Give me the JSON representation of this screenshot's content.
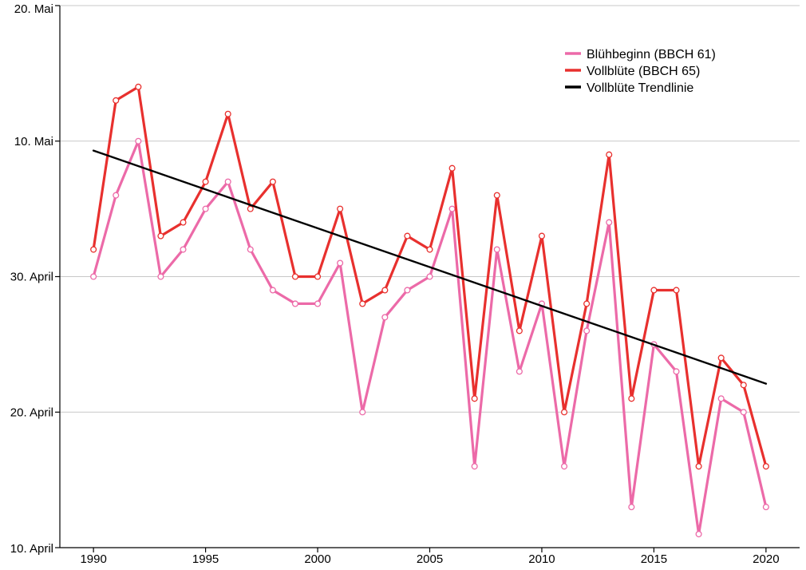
{
  "chart_data": {
    "type": "line",
    "title": "",
    "xlabel": "",
    "ylabel": "",
    "xlim": [
      1988.5,
      2021.5
    ],
    "ylim": [
      10,
      50
    ],
    "x_ticks": [
      1990,
      1995,
      2000,
      2005,
      2010,
      2015,
      2020
    ],
    "y_ticks": [
      {
        "value": 10,
        "label": "10. April"
      },
      {
        "value": 20,
        "label": "20. April"
      },
      {
        "value": 30,
        "label": "30. April"
      },
      {
        "value": 40,
        "label": "10. Mai"
      },
      {
        "value": 50,
        "label": "20. Mai"
      }
    ],
    "grid": "horizontal",
    "legend_position": "top-right",
    "x": [
      1990,
      1991,
      1992,
      1993,
      1994,
      1995,
      1996,
      1997,
      1998,
      1999,
      2000,
      2001,
      2002,
      2003,
      2004,
      2005,
      2006,
      2007,
      2008,
      2009,
      2010,
      2011,
      2012,
      2013,
      2014,
      2015,
      2016,
      2017,
      2018,
      2019,
      2020
    ],
    "series": [
      {
        "name": "Blühbeginn (BBCH 61)",
        "color": "#ec6aa8",
        "markers": true,
        "values": [
          30,
          36,
          40,
          30,
          32,
          35,
          37,
          32,
          29,
          28,
          28,
          31,
          20,
          27,
          29,
          30,
          35,
          16,
          32,
          23,
          28,
          16,
          26,
          34,
          13,
          25,
          23,
          11,
          21,
          20,
          13
        ]
      },
      {
        "name": "Vollblüte (BBCH 65)",
        "color": "#e8302e",
        "markers": true,
        "values": [
          32,
          43,
          44,
          33,
          34,
          37,
          42,
          35,
          37,
          30,
          30,
          35,
          28,
          29,
          33,
          32,
          38,
          21,
          36,
          26,
          33,
          20,
          28,
          39,
          21,
          29,
          29,
          16,
          24,
          22,
          16
        ]
      },
      {
        "name": "Vollblüte Trendlinie",
        "color": "#000000",
        "markers": false,
        "x": [
          1990,
          2020
        ],
        "values": [
          39.3,
          22.1
        ]
      }
    ]
  }
}
